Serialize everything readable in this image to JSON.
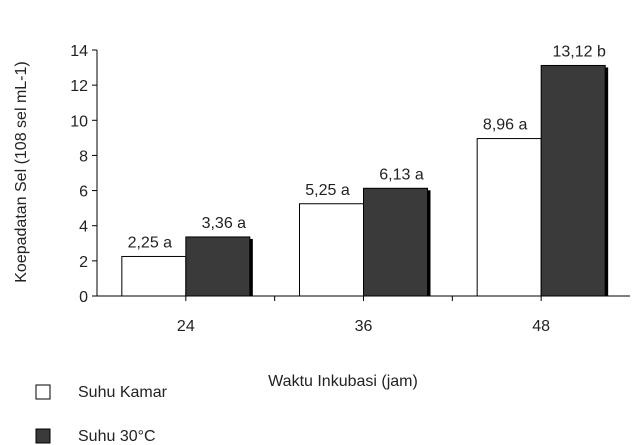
{
  "chart_data": {
    "type": "bar",
    "categories": [
      "24",
      "36",
      "48"
    ],
    "series": [
      {
        "name": "Suhu Kamar",
        "values": [
          2.25,
          5.25,
          8.96
        ],
        "labels": [
          "2,25 a",
          "5,25 a",
          "8,96 a"
        ],
        "color": "#ffffff"
      },
      {
        "name": "Suhu 30°C",
        "values": [
          3.36,
          6.13,
          13.12
        ],
        "labels": [
          "3,36 a",
          "6,13 a",
          "13,12 b"
        ],
        "color": "#3a3a3a"
      }
    ],
    "xlabel": "Waktu Inkubasi (jam)",
    "ylabel": "Koepadatan Sel (108 sel mL-1)",
    "ylim": [
      0,
      14
    ],
    "yticks": [
      "0",
      "2",
      "4",
      "6",
      "8",
      "10",
      "12",
      "14"
    ],
    "grid": false,
    "legend_position": "bottom-left"
  }
}
